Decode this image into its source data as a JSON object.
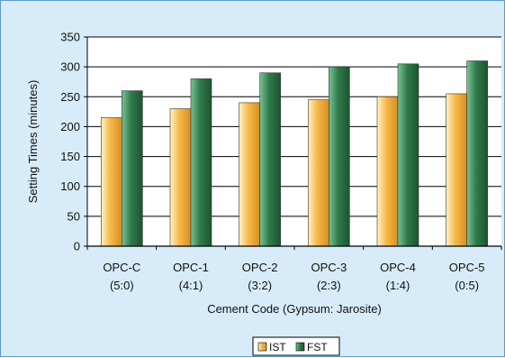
{
  "chart_data": {
    "type": "bar",
    "categories": [
      [
        "OPC-C",
        "(5:0)"
      ],
      [
        "OPC-1",
        "(4:1)"
      ],
      [
        "OPC-2",
        "(3:2)"
      ],
      [
        "OPC-3",
        "(2:3)"
      ],
      [
        "OPC-4",
        "(1:4)"
      ],
      [
        "OPC-5",
        "(0:5)"
      ]
    ],
    "series": [
      {
        "name": "IST",
        "values": [
          215,
          230,
          240,
          245,
          250,
          255
        ],
        "color": "#f5b84a"
      },
      {
        "name": "FST",
        "values": [
          260,
          280,
          290,
          300,
          305,
          310
        ],
        "color": "#2f7a4a"
      }
    ],
    "xlabel": "Cement Code (Gypsum: Jarosite)",
    "ylabel": "Setting Times (minutes)",
    "ylim": [
      0,
      350
    ],
    "yticks": [
      0,
      50,
      100,
      150,
      200,
      250,
      300,
      350
    ],
    "grid": true,
    "legend": "bottom-center"
  },
  "colors": {
    "background": "#d7ecf8",
    "plot_background": "#ffffff",
    "border": "#5a9bd0",
    "gridline": "#000000"
  }
}
